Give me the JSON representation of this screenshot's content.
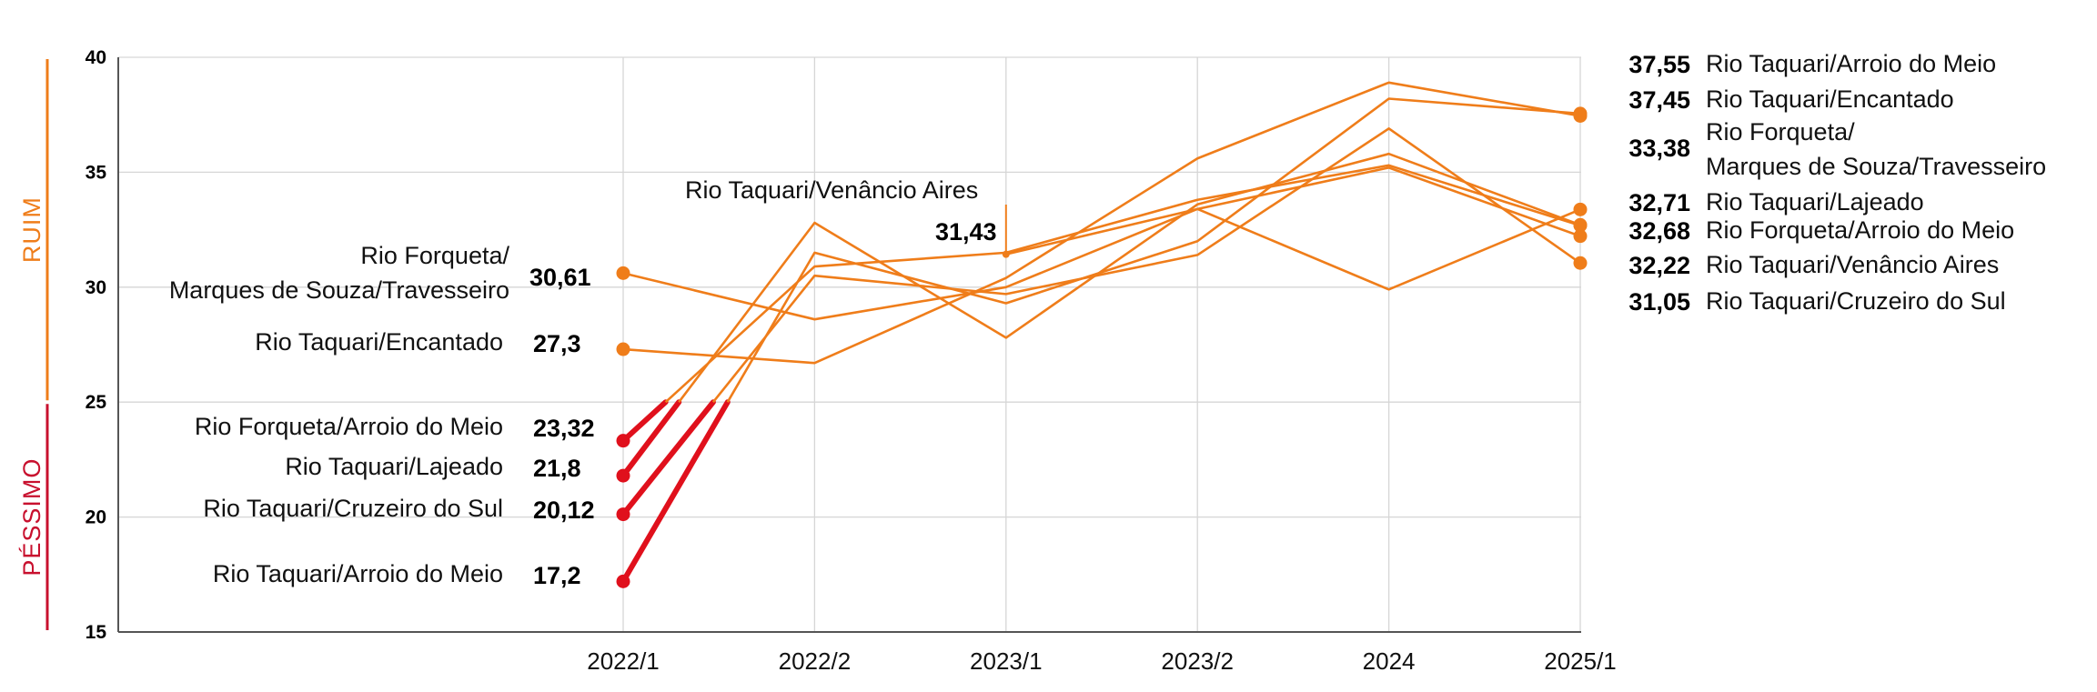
{
  "chart_data": {
    "type": "line",
    "x": [
      "2022/1",
      "2022/2",
      "2023/1",
      "2023/2",
      "2024",
      "2025/1"
    ],
    "ylim": [
      15,
      40
    ],
    "yticks": [
      15,
      20,
      25,
      30,
      35,
      40
    ],
    "grid": true,
    "bands": [
      {
        "label": "RUIM",
        "range": [
          25,
          40
        ],
        "color": "#ef7d1a"
      },
      {
        "label": "PÉSSIMO",
        "range": [
          15,
          25
        ],
        "color": "#c8102e"
      }
    ],
    "colors": {
      "line": "#ef7d1a",
      "critical": "#e0101c",
      "grid": "#d6d6d6",
      "axis": "#555555"
    },
    "series": [
      {
        "name": "Rio Taquari/Arroio do Meio",
        "values": [
          17.2,
          31.5,
          29.3,
          32.0,
          38.2,
          37.55
        ],
        "start_label": "17,2",
        "end_label": "37,55"
      },
      {
        "name": "Rio Taquari/Encantado",
        "values": [
          27.3,
          26.7,
          30.4,
          35.6,
          38.9,
          37.45
        ],
        "start_label": "27,3",
        "end_label": "37,45"
      },
      {
        "name": "Rio Forqueta/\nMarques de Souza/Travesseiro",
        "values": [
          30.61,
          28.6,
          30.0,
          33.4,
          29.9,
          33.38
        ],
        "start_label": "30,61",
        "end_label": "33,38"
      },
      {
        "name": "Rio Taquari/Lajeado",
        "values": [
          21.8,
          32.8,
          27.8,
          33.6,
          35.8,
          32.71
        ],
        "start_label": "21,8",
        "end_label": "32,71"
      },
      {
        "name": "Rio Forqueta/Arroio do Meio",
        "values": [
          23.32,
          30.9,
          31.5,
          33.8,
          35.3,
          32.68
        ],
        "start_label": "23,32",
        "end_label": "32,68"
      },
      {
        "name": "Rio Taquari/Venâncio Aires",
        "values": [
          null,
          null,
          31.43,
          33.4,
          35.2,
          32.22
        ],
        "end_label": "32,22"
      },
      {
        "name": "Rio Taquari/Cruzeiro do Sul",
        "values": [
          20.12,
          30.5,
          29.7,
          31.4,
          36.9,
          31.05
        ],
        "start_label": "20,12",
        "end_label": "31,05"
      }
    ],
    "annotation": {
      "name": "Rio Taquari/Venâncio Aires",
      "value": "31,43",
      "x": "2023/1",
      "y": 31.43
    }
  }
}
